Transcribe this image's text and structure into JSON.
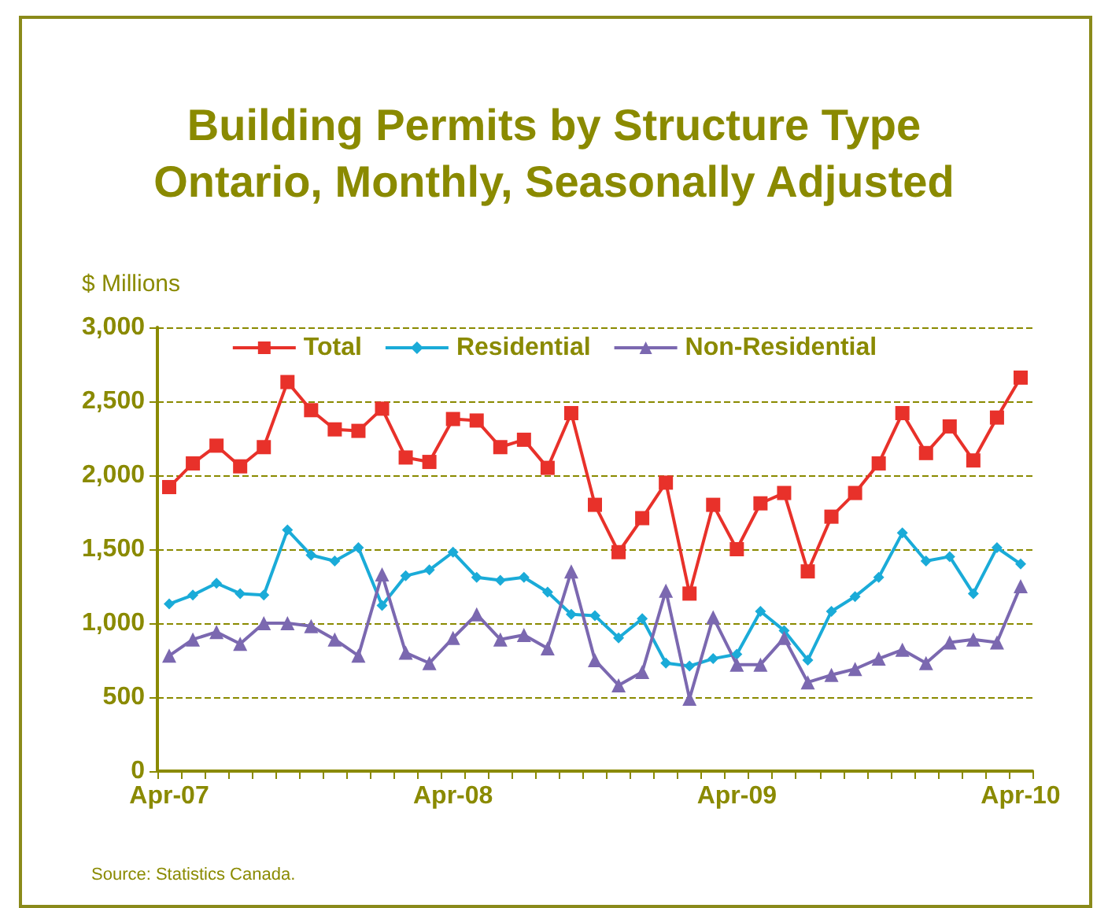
{
  "chart_data": {
    "type": "line",
    "title": "Building Permits by Structure Type",
    "subtitle": "Ontario, Monthly, Seasonally Adjusted",
    "ylabel": "$ Millions",
    "categories": [
      "Apr-07",
      null,
      null,
      null,
      null,
      null,
      null,
      null,
      null,
      null,
      null,
      null,
      "Apr-08",
      null,
      null,
      null,
      null,
      null,
      null,
      null,
      null,
      null,
      null,
      null,
      "Apr-09",
      null,
      null,
      null,
      null,
      null,
      null,
      null,
      null,
      null,
      null,
      null,
      "Apr-10"
    ],
    "series": [
      {
        "name": "Total",
        "color": "#e8312a",
        "marker": "square",
        "values": [
          1920,
          2080,
          2200,
          2060,
          2190,
          2630,
          2440,
          2310,
          2300,
          2450,
          2120,
          2090,
          2380,
          2370,
          2190,
          2240,
          2050,
          2420,
          1800,
          1480,
          1710,
          1950,
          1200,
          1800,
          1500,
          1810,
          1880,
          1350,
          1720,
          1880,
          2080,
          2420,
          2150,
          2330,
          2100,
          2390,
          2660
        ]
      },
      {
        "name": "Residential",
        "color": "#1aabd8",
        "marker": "diamond",
        "values": [
          1130,
          1190,
          1270,
          1200,
          1190,
          1630,
          1460,
          1420,
          1510,
          1120,
          1320,
          1360,
          1480,
          1310,
          1290,
          1310,
          1210,
          1060,
          1050,
          900,
          1030,
          730,
          710,
          760,
          790,
          1080,
          950,
          750,
          1080,
          1180,
          1310,
          1610,
          1420,
          1450,
          1200,
          1510,
          1400
        ]
      },
      {
        "name": "Non-Residential",
        "color": "#7b68b0",
        "marker": "triangle",
        "values": [
          780,
          890,
          940,
          860,
          1000,
          1000,
          980,
          890,
          780,
          1330,
          800,
          730,
          900,
          1060,
          890,
          920,
          830,
          1350,
          750,
          580,
          670,
          1220,
          490,
          1040,
          720,
          720,
          900,
          600,
          650,
          690,
          760,
          820,
          730,
          870,
          890,
          870,
          1250
        ]
      }
    ],
    "ylim": [
      0,
      3000
    ],
    "yticks": [
      {
        "value": 0,
        "label": "0"
      },
      {
        "value": 500,
        "label": "500"
      },
      {
        "value": 1000,
        "label": "1,000"
      },
      {
        "value": 1500,
        "label": "1,500"
      },
      {
        "value": 2000,
        "label": "2,000"
      },
      {
        "value": 2500,
        "label": "2,500"
      },
      {
        "value": 3000,
        "label": "3,000"
      }
    ],
    "grid": "y",
    "legend": "top",
    "line_style": "solid",
    "annotations": [
      "Source: Statistics Canada."
    ]
  }
}
